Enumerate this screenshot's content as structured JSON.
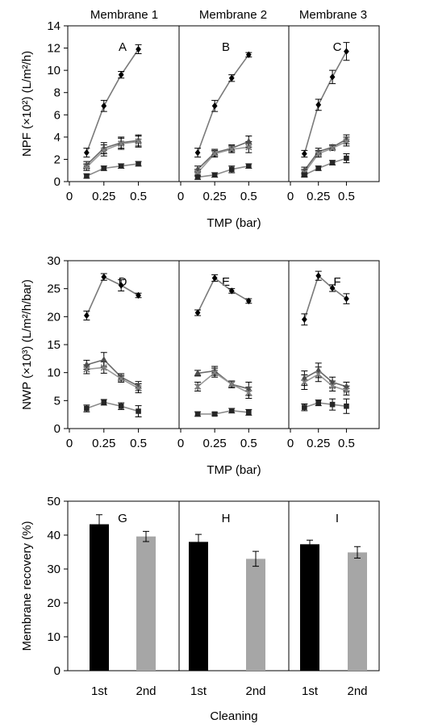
{
  "column_titles": [
    "Membrane 1",
    "Membrane 2",
    "Membrane 3"
  ],
  "chart_data": [
    {
      "type": "line",
      "row": "NPF",
      "ylabel": "NPF (×10²) (L/m²/h)",
      "xlabel": "TMP (bar)",
      "ylim": [
        0,
        14
      ],
      "yticks": [
        "0",
        "2",
        "4",
        "6",
        "8",
        "10",
        "12",
        "14"
      ],
      "xticks": [
        "0",
        "0.25",
        "0.5"
      ],
      "x": [
        0.125,
        0.25,
        0.375,
        0.5
      ],
      "panels": [
        {
          "label": "A",
          "series": [
            {
              "marker": "diamond",
              "values": [
                2.6,
                6.8,
                9.6,
                11.9
              ],
              "err": [
                0.4,
                0.5,
                0.3,
                0.4
              ]
            },
            {
              "marker": "triangle",
              "values": [
                1.5,
                3.0,
                3.5,
                3.7
              ],
              "err": [
                0.3,
                0.5,
                0.5,
                0.5
              ]
            },
            {
              "marker": "x",
              "values": [
                1.3,
                2.8,
                3.4,
                3.6
              ],
              "err": [
                0.3,
                0.5,
                0.5,
                0.5
              ]
            },
            {
              "marker": "square",
              "values": [
                0.5,
                1.2,
                1.4,
                1.6
              ],
              "err": [
                0.2,
                0.2,
                0.2,
                0.2
              ]
            }
          ]
        },
        {
          "label": "B",
          "series": [
            {
              "marker": "diamond",
              "values": [
                2.6,
                6.8,
                9.3,
                11.4
              ],
              "err": [
                0.4,
                0.5,
                0.3,
                0.2
              ]
            },
            {
              "marker": "triangle",
              "values": [
                1.1,
                2.6,
                3.0,
                3.6
              ],
              "err": [
                0.3,
                0.3,
                0.3,
                0.5
              ]
            },
            {
              "marker": "x",
              "values": [
                0.8,
                2.5,
                2.9,
                3.1
              ],
              "err": [
                0.3,
                0.3,
                0.3,
                0.5
              ]
            },
            {
              "marker": "square",
              "values": [
                0.4,
                0.6,
                1.1,
                1.4
              ],
              "err": [
                0.2,
                0.2,
                0.3,
                0.2
              ]
            }
          ]
        },
        {
          "label": "C",
          "series": [
            {
              "marker": "diamond",
              "values": [
                2.5,
                6.9,
                9.4,
                11.7
              ],
              "err": [
                0.3,
                0.5,
                0.6,
                0.8
              ]
            },
            {
              "marker": "triangle",
              "values": [
                1.0,
                2.7,
                3.1,
                3.8
              ],
              "err": [
                0.3,
                0.3,
                0.2,
                0.4
              ]
            },
            {
              "marker": "x",
              "values": [
                0.8,
                2.5,
                3.0,
                3.6
              ],
              "err": [
                0.3,
                0.3,
                0.2,
                0.4
              ]
            },
            {
              "marker": "square",
              "values": [
                0.6,
                1.2,
                1.7,
                2.1
              ],
              "err": [
                0.2,
                0.2,
                0.2,
                0.4
              ]
            }
          ]
        }
      ]
    },
    {
      "type": "line",
      "row": "NWP",
      "ylabel": "NWP (×10³) (L/m²/h/bar)",
      "xlabel": "TMP (bar)",
      "ylim": [
        0,
        30
      ],
      "yticks": [
        "0",
        "5",
        "10",
        "15",
        "20",
        "25",
        "30"
      ],
      "xticks": [
        "0",
        "0.25",
        "0.5"
      ],
      "x": [
        0.125,
        0.25,
        0.375,
        0.5
      ],
      "panels": [
        {
          "label": "D",
          "series": [
            {
              "marker": "diamond",
              "values": [
                20.2,
                27.1,
                25.6,
                23.8
              ],
              "err": [
                0.8,
                0.6,
                1.0,
                0.4
              ]
            },
            {
              "marker": "triangle",
              "values": [
                11.4,
                12.3,
                9.2,
                7.6
              ],
              "err": [
                0.8,
                1.3,
                0.6,
                0.8
              ]
            },
            {
              "marker": "x",
              "values": [
                10.6,
                10.9,
                8.9,
                7.2
              ],
              "err": [
                0.8,
                1.0,
                0.6,
                0.8
              ]
            },
            {
              "marker": "square",
              "values": [
                3.6,
                4.7,
                4.0,
                3.1
              ],
              "err": [
                0.6,
                0.5,
                0.6,
                1.0
              ]
            }
          ]
        },
        {
          "label": "E",
          "series": [
            {
              "marker": "diamond",
              "values": [
                20.7,
                26.9,
                24.6,
                22.8
              ],
              "err": [
                0.5,
                0.6,
                0.4,
                0.4
              ]
            },
            {
              "marker": "triangle",
              "values": [
                9.9,
                10.3,
                7.9,
                7.1
              ],
              "err": [
                0.5,
                0.8,
                0.6,
                1.2
              ]
            },
            {
              "marker": "x",
              "values": [
                7.5,
                10.0,
                7.9,
                6.4
              ],
              "err": [
                0.8,
                0.8,
                0.6,
                1.0
              ]
            },
            {
              "marker": "square",
              "values": [
                2.6,
                2.6,
                3.2,
                2.9
              ],
              "err": [
                0.4,
                0.3,
                0.4,
                0.5
              ]
            }
          ]
        },
        {
          "label": "F",
          "series": [
            {
              "marker": "diamond",
              "values": [
                19.5,
                27.3,
                25.1,
                23.2
              ],
              "err": [
                1.0,
                0.8,
                0.6,
                0.9
              ]
            },
            {
              "marker": "triangle",
              "values": [
                9.0,
                10.4,
                8.3,
                7.5
              ],
              "err": [
                1.3,
                1.3,
                0.9,
                0.8
              ]
            },
            {
              "marker": "x",
              "values": [
                8.3,
                9.7,
                7.6,
                6.8
              ],
              "err": [
                1.3,
                1.3,
                0.9,
                0.8
              ]
            },
            {
              "marker": "square",
              "values": [
                3.8,
                4.6,
                4.3,
                4.0
              ],
              "err": [
                0.6,
                0.5,
                1.0,
                1.3
              ]
            }
          ]
        }
      ]
    },
    {
      "type": "bar",
      "row": "recovery",
      "ylabel": "Membrane recovery  (%)",
      "xlabel": "Cleaning",
      "ylim": [
        0,
        50
      ],
      "yticks": [
        "0",
        "10",
        "20",
        "30",
        "40",
        "50"
      ],
      "categories": [
        "1st",
        "2nd"
      ],
      "colors": [
        "#000000",
        "#a6a6a6"
      ],
      "panels": [
        {
          "label": "G",
          "values": [
            43.2,
            39.6
          ],
          "err": [
            2.8,
            1.5
          ]
        },
        {
          "label": "H",
          "values": [
            38.0,
            33.0
          ],
          "err": [
            2.2,
            2.2
          ]
        },
        {
          "label": "I",
          "values": [
            37.3,
            34.9
          ],
          "err": [
            1.2,
            1.7
          ]
        }
      ]
    }
  ]
}
